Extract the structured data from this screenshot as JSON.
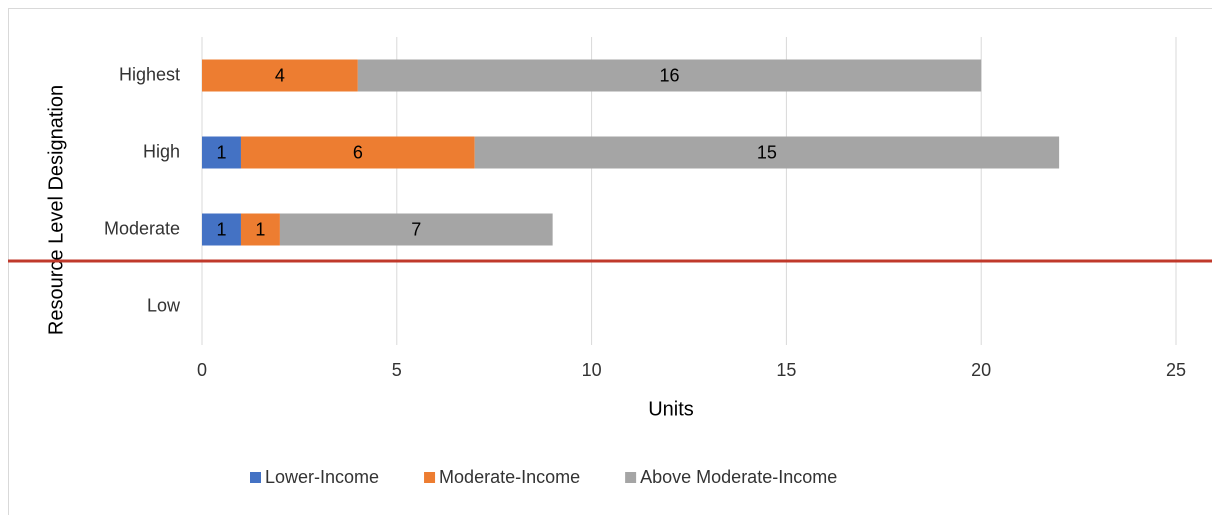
{
  "chart_data": {
    "type": "bar",
    "orientation": "horizontal",
    "stacked": true,
    "categories": [
      "Highest",
      "High",
      "Moderate",
      "Low"
    ],
    "series": [
      {
        "name": "Lower-Income",
        "color": "#4472c4",
        "values": [
          null,
          1,
          1,
          null
        ]
      },
      {
        "name": "Moderate-Income",
        "color": "#ed7d31",
        "values": [
          4,
          6,
          1,
          null
        ]
      },
      {
        "name": "Above Moderate-Income",
        "color": "#a5a5a5",
        "values": [
          16,
          15,
          7,
          null
        ]
      }
    ],
    "xlim": [
      0,
      25
    ],
    "xticks": [
      0,
      5,
      10,
      15,
      20,
      25
    ],
    "xlabel": "Units",
    "ylabel": "Resource Level Designation",
    "grid": true,
    "legend": "bottom"
  }
}
